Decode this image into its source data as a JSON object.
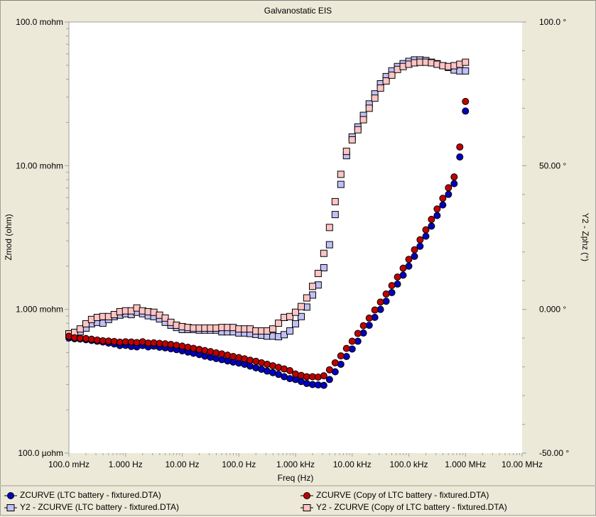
{
  "window": {
    "title": "Galvanostatic EIS"
  },
  "axes": {
    "x_label": "Freq (Hz)",
    "y_label": "Zmod (ohm)",
    "y2_label": "Y2 - Zphz (°)",
    "x_ticks": [
      "100.0 mHz",
      "1.000 Hz",
      "10.00 Hz",
      "100.0 Hz",
      "1.000 kHz",
      "10.00 kHz",
      "100.0 kHz",
      "1.000 MHz",
      "10.00 MHz"
    ],
    "y_ticks": [
      "100.0 mohm",
      "10.00 mohm",
      "1.000 mohm",
      "100.0 µohm"
    ],
    "y2_ticks": [
      "100.0 °",
      "50.00 °",
      "0.000 °",
      "-50.00 °"
    ]
  },
  "legend": [
    {
      "label": "ZCURVE (LTC battery - fixtured.DTA)",
      "color": "#0000c0",
      "marker": "circle"
    },
    {
      "label": "ZCURVE (Copy of LTC battery - fixtured.DTA)",
      "color": "#c00000",
      "marker": "circle"
    },
    {
      "label": "Y2 - ZCURVE (LTC battery - fixtured.DTA)",
      "color": "#c0c0f8",
      "marker": "square"
    },
    {
      "label": "Y2 - ZCURVE (Copy of LTC battery - fixtured.DTA)",
      "color": "#ffc4c4",
      "marker": "square"
    }
  ],
  "chart_data": {
    "type": "scatter",
    "title": "Galvanostatic EIS",
    "xlabel": "Freq (Hz)",
    "ylabel": "Zmod (ohm)",
    "y2label": "Y2 - Zphz (°)",
    "xscale": "log",
    "yscale": "log",
    "xlim": [
      0.1,
      10000000
    ],
    "ylim": [
      0.0001,
      0.1
    ],
    "y2lim": [
      -50,
      100
    ],
    "grid": false,
    "legend_position": "bottom",
    "x": [
      0.1,
      0.126,
      0.158,
      0.2,
      0.251,
      0.316,
      0.398,
      0.501,
      0.631,
      0.794,
      1,
      1.26,
      1.58,
      2,
      2.51,
      3.16,
      3.98,
      5.01,
      6.31,
      7.94,
      10,
      12.6,
      15.8,
      20,
      25.1,
      31.6,
      39.8,
      50.1,
      63.1,
      79.4,
      100,
      126,
      158,
      200,
      251,
      316,
      398,
      501,
      631,
      794,
      1000,
      1260,
      1580,
      2000,
      2510,
      3160,
      3980,
      5010,
      6310,
      7940,
      10000,
      12600,
      15800,
      20000,
      25100,
      31600,
      39800,
      50100,
      63100,
      79400,
      100000,
      126000,
      158000,
      200000,
      251000,
      316000,
      398000,
      501000,
      631000,
      794000,
      1000000
    ],
    "series": [
      {
        "name": "ZCURVE (LTC battery - fixtured.DTA)",
        "axis": "y",
        "unit": "ohm",
        "values": [
          0.000632,
          0.000625,
          0.000622,
          0.000615,
          0.000608,
          0.0006,
          0.000593,
          0.000583,
          0.000575,
          0.00056,
          0.000562,
          0.000552,
          0.000548,
          0.00056,
          0.000548,
          0.000555,
          0.000545,
          0.00054,
          0.000532,
          0.000525,
          0.000515,
          0.000505,
          0.000495,
          0.000485,
          0.000473,
          0.000464,
          0.000455,
          0.000447,
          0.000438,
          0.00043,
          0.000423,
          0.000415,
          0.000403,
          0.000392,
          0.000383,
          0.000372,
          0.000363,
          0.000353,
          0.00034,
          0.00033,
          0.000325,
          0.000315,
          0.000305,
          0.0003,
          0.000298,
          0.000296,
          0.000325,
          0.000368,
          0.000415,
          0.00047,
          0.00053,
          0.0006,
          0.000685,
          0.000775,
          0.00088,
          0.001,
          0.00114,
          0.00131,
          0.0015,
          0.00173,
          0.002,
          0.00234,
          0.00275,
          0.00323,
          0.0038,
          0.0045,
          0.00533,
          0.00632,
          0.0075,
          0.0115,
          0.024
        ]
      },
      {
        "name": "ZCURVE (Copy of LTC battery - fixtured.DTA)",
        "axis": "y",
        "unit": "ohm",
        "values": [
          0.00065,
          0.000635,
          0.00063,
          0.000627,
          0.00062,
          0.000612,
          0.000605,
          0.000602,
          0.000598,
          0.000592,
          0.000595,
          0.000593,
          0.000588,
          0.000595,
          0.000583,
          0.000585,
          0.00058,
          0.000576,
          0.00057,
          0.000562,
          0.000555,
          0.000545,
          0.000536,
          0.000527,
          0.000517,
          0.000508,
          0.000498,
          0.00049,
          0.00048,
          0.00047,
          0.000462,
          0.000453,
          0.000443,
          0.000435,
          0.000425,
          0.000415,
          0.000405,
          0.000395,
          0.000385,
          0.000375,
          0.000355,
          0.000347,
          0.00034,
          0.00034,
          0.000338,
          0.000345,
          0.00038,
          0.000425,
          0.000475,
          0.000535,
          0.0006,
          0.00068,
          0.00077,
          0.00087,
          0.00099,
          0.001125,
          0.00128,
          0.001465,
          0.00168,
          0.001935,
          0.00223,
          0.0026,
          0.00305,
          0.00358,
          0.00423,
          0.005,
          0.00593,
          0.00702,
          0.00835,
          0.0135,
          0.028
        ]
      },
      {
        "name": "Y2 - ZCURVE (LTC battery - fixtured.DTA)",
        "axis": "y2",
        "unit": "deg",
        "values": [
          -8.5,
          -8.5,
          -7.8,
          -6.5,
          -5.0,
          -4.5,
          -4.8,
          -3.5,
          -2.5,
          -2.0,
          -1.5,
          -1.8,
          -1.0,
          -1.5,
          -2.2,
          -2.5,
          -3.3,
          -4.5,
          -5.5,
          -6.3,
          -7.0,
          -7.0,
          -7.0,
          -7.2,
          -7.2,
          -7.2,
          -7.2,
          -7.8,
          -7.8,
          -7.8,
          -8.2,
          -8.2,
          -8.4,
          -8.7,
          -9.0,
          -9.3,
          -9.3,
          -9.5,
          -8.8,
          -7.5,
          -5.0,
          -2.5,
          0.8,
          5.0,
          8.5,
          14.5,
          22.5,
          33.0,
          43.5,
          53.5,
          60.0,
          63.5,
          67.5,
          71.5,
          75.0,
          78.5,
          81.0,
          83.0,
          84.5,
          85.5,
          86.3,
          86.8,
          86.8,
          86.6,
          86.0,
          85.5,
          84.8,
          84.2,
          83.3,
          83.0,
          83.0
        ]
      },
      {
        "name": "Y2 - ZCURVE (Copy of LTC battery - fixtured.DTA)",
        "axis": "y2",
        "unit": "deg",
        "values": [
          -8.5,
          -8.0,
          -6.8,
          -5.0,
          -3.5,
          -2.8,
          -2.5,
          -2.5,
          -1.8,
          -0.8,
          -0.5,
          -0.5,
          0.5,
          -0.5,
          -0.8,
          -1.0,
          -2.0,
          -3.0,
          -4.5,
          -5.5,
          -6.0,
          -6.3,
          -6.5,
          -6.5,
          -6.5,
          -6.5,
          -6.5,
          -6.3,
          -6.3,
          -6.3,
          -6.8,
          -6.8,
          -6.8,
          -7.5,
          -7.5,
          -7.5,
          -6.8,
          -4.8,
          -2.8,
          -2.5,
          -1.0,
          1.0,
          4.0,
          8.0,
          12.5,
          19.5,
          28.5,
          37.5,
          47.0,
          55.0,
          59.0,
          62.5,
          66.0,
          70.0,
          73.5,
          77.0,
          79.5,
          81.5,
          83.5,
          84.5,
          85.3,
          85.8,
          86.0,
          86.0,
          85.8,
          85.3,
          84.8,
          84.5,
          84.8,
          85.3,
          86.0
        ]
      }
    ]
  }
}
